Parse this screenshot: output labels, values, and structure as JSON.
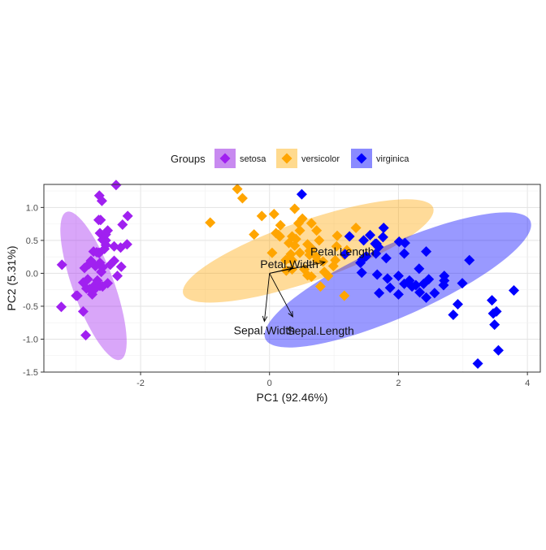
{
  "chart_data": {
    "type": "scatter",
    "title": "",
    "xlabel": "PC1 (92.46%)",
    "ylabel": "PC2 (5.31%)",
    "xlim": [
      -3.5,
      4.2
    ],
    "ylim": [
      -1.5,
      1.35
    ],
    "x_ticks": [
      -2,
      0,
      2,
      4
    ],
    "y_ticks": [
      -1.5,
      -1.0,
      -0.5,
      0.0,
      0.5,
      1.0
    ],
    "x_tick_labels": [
      "-2",
      "0",
      "2",
      "4"
    ],
    "y_tick_labels": [
      "-1.5",
      "-1.0",
      "-0.5",
      "0.0",
      "0.5",
      "1.0"
    ],
    "grid": true,
    "legend": {
      "title": "Groups",
      "position": "top",
      "entries": [
        "setosa",
        "versicolor",
        "virginica"
      ]
    },
    "series": [
      {
        "name": "setosa",
        "color": "#A020F0",
        "fill": "#C88AF0",
        "ellipse": {
          "cx": -2.73,
          "cy": -0.19,
          "rx": 1.22,
          "ry": 0.32,
          "angle_deg": 70
        },
        "points": [
          [
            -2.68,
            0.32
          ],
          [
            -2.71,
            -0.18
          ],
          [
            -2.89,
            -0.14
          ],
          [
            -2.75,
            -0.32
          ],
          [
            -2.73,
            0.33
          ],
          [
            -2.28,
            0.74
          ],
          [
            -2.82,
            -0.09
          ],
          [
            -2.63,
            0.16
          ],
          [
            -2.89,
            -0.58
          ],
          [
            -2.67,
            -0.11
          ],
          [
            -2.51,
            0.65
          ],
          [
            -2.61,
            0.02
          ],
          [
            -2.79,
            -0.24
          ],
          [
            -3.23,
            -0.51
          ],
          [
            -2.64,
            1.18
          ],
          [
            -2.38,
            1.34
          ],
          [
            -2.62,
            0.81
          ],
          [
            -2.65,
            0.31
          ],
          [
            -2.2,
            0.87
          ],
          [
            -2.59,
            0.51
          ],
          [
            -2.31,
            0.39
          ],
          [
            -2.54,
            0.43
          ],
          [
            -3.22,
            0.13
          ],
          [
            -2.3,
            0.1
          ],
          [
            -2.36,
            -0.04
          ],
          [
            -2.51,
            -0.15
          ],
          [
            -2.47,
            0.13
          ],
          [
            -2.56,
            0.37
          ],
          [
            -2.64,
            0.31
          ],
          [
            -2.63,
            -0.19
          ],
          [
            -2.59,
            -0.2
          ],
          [
            -2.41,
            0.41
          ],
          [
            -2.65,
            0.81
          ],
          [
            -2.6,
            1.1
          ],
          [
            -2.67,
            -0.11
          ],
          [
            -2.87,
            0.08
          ],
          [
            -2.63,
            0.61
          ],
          [
            -2.8,
            0.14
          ],
          [
            -2.98,
            -0.34
          ],
          [
            -2.59,
            0.09
          ],
          [
            -2.77,
            0.19
          ],
          [
            -2.85,
            -0.94
          ],
          [
            -3.0,
            -0.34
          ],
          [
            -2.41,
            0.19
          ],
          [
            -2.21,
            0.44
          ],
          [
            -2.72,
            -0.25
          ],
          [
            -2.54,
            0.5
          ],
          [
            -2.84,
            -0.23
          ],
          [
            -2.54,
            0.59
          ],
          [
            -2.7,
            0.11
          ]
        ]
      },
      {
        "name": "versicolor",
        "color": "#FFA500",
        "fill": "#FFDA8E",
        "ellipse": {
          "cx": 0.6,
          "cy": 0.34,
          "rx": 2.05,
          "ry": 0.47,
          "angle_deg": -19
        },
        "points": [
          [
            -0.92,
            0.77
          ],
          [
            -0.5,
            1.28
          ],
          [
            0.07,
            0.9
          ],
          [
            0.39,
            0.98
          ],
          [
            -0.12,
            0.87
          ],
          [
            0.35,
            0.2
          ],
          [
            0.17,
            0.73
          ],
          [
            0.25,
            0.2
          ],
          [
            0.47,
            0.31
          ],
          [
            0.72,
            0.26
          ],
          [
            0.04,
            0.31
          ],
          [
            0.77,
            0.5
          ],
          [
            0.39,
            0.42
          ],
          [
            0.45,
            0.76
          ],
          [
            0.59,
            0.44
          ],
          [
            1.05,
            0.57
          ],
          [
            0.83,
            0.18
          ],
          [
            0.16,
            0.56
          ],
          [
            0.66,
            0.37
          ],
          [
            0.65,
            0.76
          ],
          [
            0.1,
            0.61
          ],
          [
            0.51,
            0.83
          ],
          [
            0.85,
            0.02
          ],
          [
            1.16,
            0.28
          ],
          [
            0.73,
            0.65
          ],
          [
            0.47,
            0.65
          ],
          [
            0.35,
            0.56
          ],
          [
            0.79,
            -0.2
          ],
          [
            0.91,
            -0.04
          ],
          [
            0.62,
            0.28
          ],
          [
            0.14,
            0.58
          ],
          [
            0.74,
            0.2
          ],
          [
            1.04,
            0.41
          ],
          [
            0.33,
            0.29
          ],
          [
            0.41,
            0.52
          ],
          [
            0.99,
            0.11
          ],
          [
            1.02,
            0.2
          ],
          [
            0.62,
            0.34
          ],
          [
            -0.24,
            0.59
          ],
          [
            0.3,
            0.46
          ],
          [
            0.35,
            0.06
          ],
          [
            1.2,
            0.35
          ],
          [
            1.34,
            0.69
          ],
          [
            0.3,
            0.23
          ],
          [
            -0.42,
            1.14
          ],
          [
            0.59,
            -0.03
          ],
          [
            0.54,
            0.06
          ],
          [
            0.65,
            -0.05
          ],
          [
            1.16,
            -0.34
          ],
          [
            0.26,
            0.04
          ]
        ]
      },
      {
        "name": "virginica",
        "color": "#0000FF",
        "fill": "#8A8AFF",
        "ellipse": {
          "cx": 1.99,
          "cy": -0.1,
          "rx": 2.25,
          "ry": 0.56,
          "angle_deg": -24
        },
        "points": [
          [
            0.5,
            1.2
          ],
          [
            1.46,
            0.5
          ],
          [
            1.64,
            0.45
          ],
          [
            1.56,
            0.58
          ],
          [
            1.77,
            0.69
          ],
          [
            1.41,
            0.16
          ],
          [
            1.43,
            0.01
          ],
          [
            2.85,
            -0.63
          ],
          [
            1.83,
            -0.08
          ],
          [
            1.7,
            -0.3
          ],
          [
            1.44,
            0.21
          ],
          [
            1.69,
            0.4
          ],
          [
            1.5,
            0.26
          ],
          [
            1.76,
            0.55
          ],
          [
            2.0,
            -0.04
          ],
          [
            2.7,
            -0.18
          ],
          [
            2.27,
            -0.18
          ],
          [
            1.67,
            -0.02
          ],
          [
            2.56,
            -0.3
          ],
          [
            2.39,
            -0.16
          ],
          [
            2.09,
            -0.16
          ],
          [
            2.43,
            -0.37
          ],
          [
            2.21,
            -0.2
          ],
          [
            2.47,
            -0.09
          ],
          [
            2.92,
            -0.47
          ],
          [
            3.23,
            -1.37
          ],
          [
            3.1,
            0.2
          ],
          [
            3.52,
            -0.58
          ],
          [
            2.71,
            -0.04
          ],
          [
            2.33,
            -0.29
          ],
          [
            3.45,
            -0.41
          ],
          [
            3.79,
            -0.26
          ],
          [
            2.71,
            -0.11
          ],
          [
            2.0,
            -0.32
          ],
          [
            1.66,
            0.45
          ],
          [
            1.65,
            0.3
          ],
          [
            2.43,
            0.33
          ],
          [
            1.87,
            -0.22
          ],
          [
            2.99,
            -0.15
          ],
          [
            2.17,
            -0.11
          ],
          [
            1.81,
            0.23
          ],
          [
            2.32,
            0.07
          ],
          [
            3.49,
            -0.78
          ],
          [
            3.55,
            -1.17
          ],
          [
            3.47,
            -0.61
          ],
          [
            2.09,
            0.3
          ],
          [
            2.1,
            0.46
          ],
          [
            1.24,
            0.56
          ],
          [
            1.17,
            0.29
          ],
          [
            2.01,
            0.48
          ]
        ]
      }
    ],
    "loadings": [
      {
        "name": "Sepal.Length",
        "x": 0.36,
        "y": -0.66
      },
      {
        "name": "Sepal.Width",
        "x": -0.08,
        "y": -0.73
      },
      {
        "name": "Petal.Length",
        "x": 0.86,
        "y": 0.17
      },
      {
        "name": "Petal.Width",
        "x": 0.36,
        "y": 0.08
      }
    ]
  }
}
